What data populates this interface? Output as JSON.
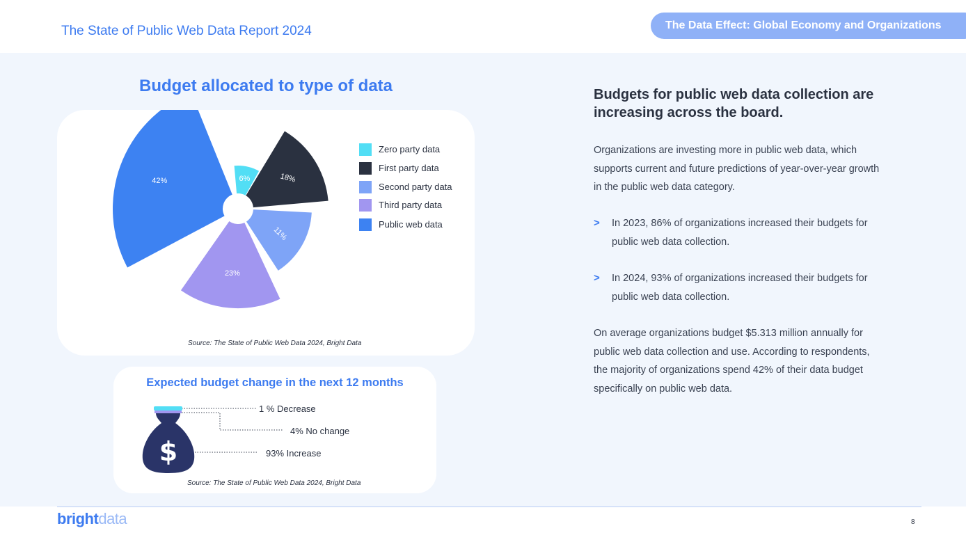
{
  "header": {
    "report_title": "The State of Public Web Data Report 2024",
    "section_title": "The Data Effect: Global Economy and Organizations"
  },
  "chart_data": {
    "type": "pie",
    "title": "Budget allocated to type of data",
    "series": [
      {
        "name": "Zero party data",
        "value": 6,
        "label": "6%",
        "color": "#52def5"
      },
      {
        "name": "First party data",
        "value": 18,
        "label": "18%",
        "color": "#2a3140"
      },
      {
        "name": "Second party data",
        "value": 11,
        "label": "11%",
        "color": "#7ea4f7"
      },
      {
        "name": "Third party data",
        "value": 23,
        "label": "23%",
        "color": "#a196f0"
      },
      {
        "name": "Public web data",
        "value": 42,
        "label": "42%",
        "color": "#3d82f2"
      }
    ],
    "legend_position": "right",
    "source": "Source: The State of Public Web Data 2024, Bright Data"
  },
  "budget_change": {
    "title": "Expected budget change in the next 12 months",
    "rows": [
      {
        "label": "1 % Decrease",
        "value": 1
      },
      {
        "label": "4% No change",
        "value": 4
      },
      {
        "label": "93% Increase",
        "value": 93
      }
    ],
    "icon": "money-bag-icon",
    "icon_symbol": "$",
    "source": "Source: The State of Public Web Data 2024, Bright Data"
  },
  "article": {
    "headline": "Budgets for public web data collection are increasing across the board.",
    "intro": "Organizations are investing more in public web data, which supports current and future predictions of year-over-year growth in the public web data category.",
    "bullets": [
      {
        "arrow": ">",
        "text": "In 2023, 86% of organizations increased their budgets for public web data collection."
      },
      {
        "arrow": ">",
        "text": "In 2024, 93% of organizations increased their budgets for public web data collection."
      }
    ],
    "closing": "On average organizations budget $5.313 million annually for public web data collection and use. According to respondents, the majority of organizations spend 42% of their data budget specifically on public web data."
  },
  "footer": {
    "logo_bright": "bright",
    "logo_data": "data",
    "page_number": "8"
  }
}
